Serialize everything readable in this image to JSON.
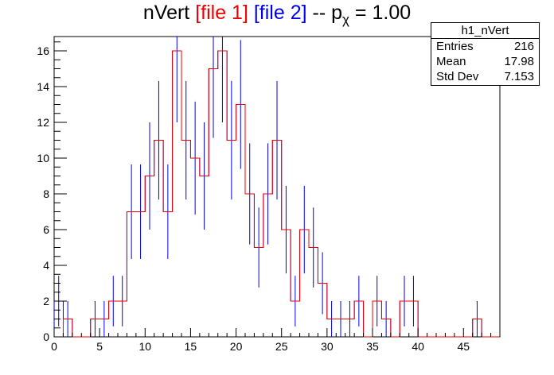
{
  "title": {
    "main": "nVert",
    "file1": "[file 1]",
    "file2": "[file 2]",
    "sep": "--",
    "p": "p",
    "chi": "χ",
    "eq": "= 1.00"
  },
  "stats": {
    "name": "h1_nVert",
    "rows": [
      {
        "label": "Entries",
        "value": "216"
      },
      {
        "label": "Mean",
        "value": "17.98"
      },
      {
        "label": "Std Dev",
        "value": "7.153"
      }
    ]
  },
  "colors": {
    "file1": "#ee0000",
    "file2": "#0000ee",
    "axis": "#000000"
  },
  "chart_data": {
    "type": "histogram",
    "title": "nVert [file 1] [file 2] -- pχ = 1.00",
    "xlim": [
      0,
      49
    ],
    "ylim": [
      0,
      16.8
    ],
    "bin_width": 1,
    "x_ticks": [
      0,
      5,
      10,
      15,
      20,
      25,
      30,
      35,
      40,
      45
    ],
    "y_ticks": [
      0,
      2,
      4,
      6,
      8,
      10,
      12,
      14,
      16
    ],
    "x_tick_labels": [
      "0",
      "5",
      "10",
      "15",
      "20",
      "25",
      "30",
      "35",
      "40",
      "45"
    ],
    "y_tick_labels": [
      "0",
      "2",
      "4",
      "6",
      "8",
      "10",
      "12",
      "14",
      "16"
    ],
    "bin_lows": [
      0,
      1,
      2,
      3,
      4,
      5,
      6,
      7,
      8,
      9,
      10,
      11,
      12,
      13,
      14,
      15,
      16,
      17,
      18,
      19,
      20,
      21,
      22,
      23,
      24,
      25,
      26,
      27,
      28,
      29,
      30,
      31,
      32,
      33,
      34,
      35,
      36,
      37,
      38,
      39,
      40,
      41,
      42,
      43,
      44,
      45,
      46,
      47,
      48
    ],
    "series": [
      {
        "name": "file 1",
        "color": "#ee0000",
        "style": "step",
        "values": [
          0,
          1,
          0,
          0,
          1,
          1,
          2,
          2,
          7,
          7,
          9,
          11,
          7,
          16,
          11,
          10,
          9,
          15,
          16,
          11,
          13,
          8,
          5,
          8,
          11,
          6,
          2,
          6,
          5,
          3,
          1,
          1,
          1,
          2,
          0,
          2,
          1,
          0,
          2,
          2,
          0,
          0,
          0,
          0,
          0,
          0,
          1,
          0,
          0
        ]
      },
      {
        "name": "file 2",
        "color": "#0000ee",
        "style": "step_with_errors",
        "values": [
          2,
          1,
          0,
          0,
          1,
          1,
          2,
          2,
          7,
          7,
          9,
          11,
          7,
          16,
          11,
          10,
          9,
          15,
          16,
          11,
          13,
          8,
          5,
          8,
          11,
          6,
          2,
          6,
          5,
          3,
          1,
          1,
          1,
          2,
          0,
          2,
          1,
          0,
          2,
          2,
          0,
          0,
          0,
          0,
          0,
          0,
          1,
          0,
          0
        ]
      }
    ]
  }
}
